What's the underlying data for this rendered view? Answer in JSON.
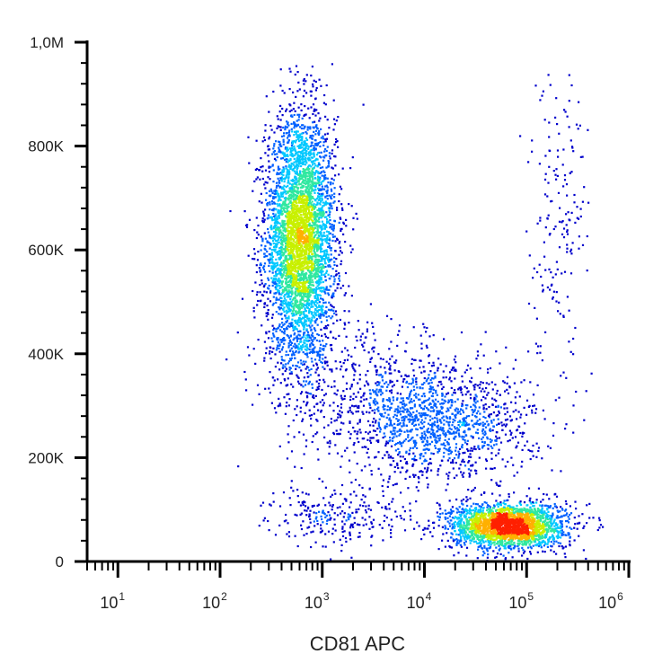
{
  "chart_data": {
    "type": "scatter",
    "title": "",
    "xlabel": "CD81 APC",
    "ylabel": "",
    "x_scale": "log",
    "xlim": [
      5,
      1000000
    ],
    "ylim": [
      0,
      1000000
    ],
    "y_ticks": [
      {
        "value": 0,
        "label": "0"
      },
      {
        "value": 200000,
        "label": "200K"
      },
      {
        "value": 400000,
        "label": "400K"
      },
      {
        "value": 600000,
        "label": "600K"
      },
      {
        "value": 800000,
        "label": "800K"
      },
      {
        "value": 1000000,
        "label": "1,0M"
      }
    ],
    "x_ticks": [
      {
        "value": 10,
        "base": "10",
        "exp": "1"
      },
      {
        "value": 100,
        "base": "10",
        "exp": "2"
      },
      {
        "value": 1000,
        "base": "10",
        "exp": "3"
      },
      {
        "value": 10000,
        "base": "10",
        "exp": "4"
      },
      {
        "value": 100000,
        "base": "10",
        "exp": "5"
      },
      {
        "value": 1000000,
        "base": "10",
        "exp": "6"
      }
    ],
    "grid": false,
    "color_scale": [
      "#0000cc",
      "#0060ff",
      "#00c8ff",
      "#30e8a0",
      "#c8f000",
      "#ffb000",
      "#ff2000"
    ],
    "populations": [
      {
        "center_x": 600,
        "center_y": 620000,
        "spread_log_x": 0.17,
        "spread_y": 120000,
        "relative_count": 1.0
      },
      {
        "center_x": 65000,
        "center_y": 70000,
        "spread_log_x": 0.28,
        "spread_y": 22000,
        "relative_count": 0.55
      },
      {
        "center_x": 15000,
        "center_y": 270000,
        "spread_log_x": 0.45,
        "spread_y": 55000,
        "relative_count": 0.28
      },
      {
        "center_x": 3000,
        "center_y": 320000,
        "spread_log_x": 0.45,
        "spread_y": 70000,
        "relative_count": 0.1
      },
      {
        "center_x": 200000,
        "center_y": 700000,
        "spread_log_x": 0.15,
        "spread_y": 150000,
        "relative_count": 0.04
      },
      {
        "center_x": 1500,
        "center_y": 90000,
        "spread_log_x": 0.35,
        "spread_y": 30000,
        "relative_count": 0.06
      }
    ]
  }
}
